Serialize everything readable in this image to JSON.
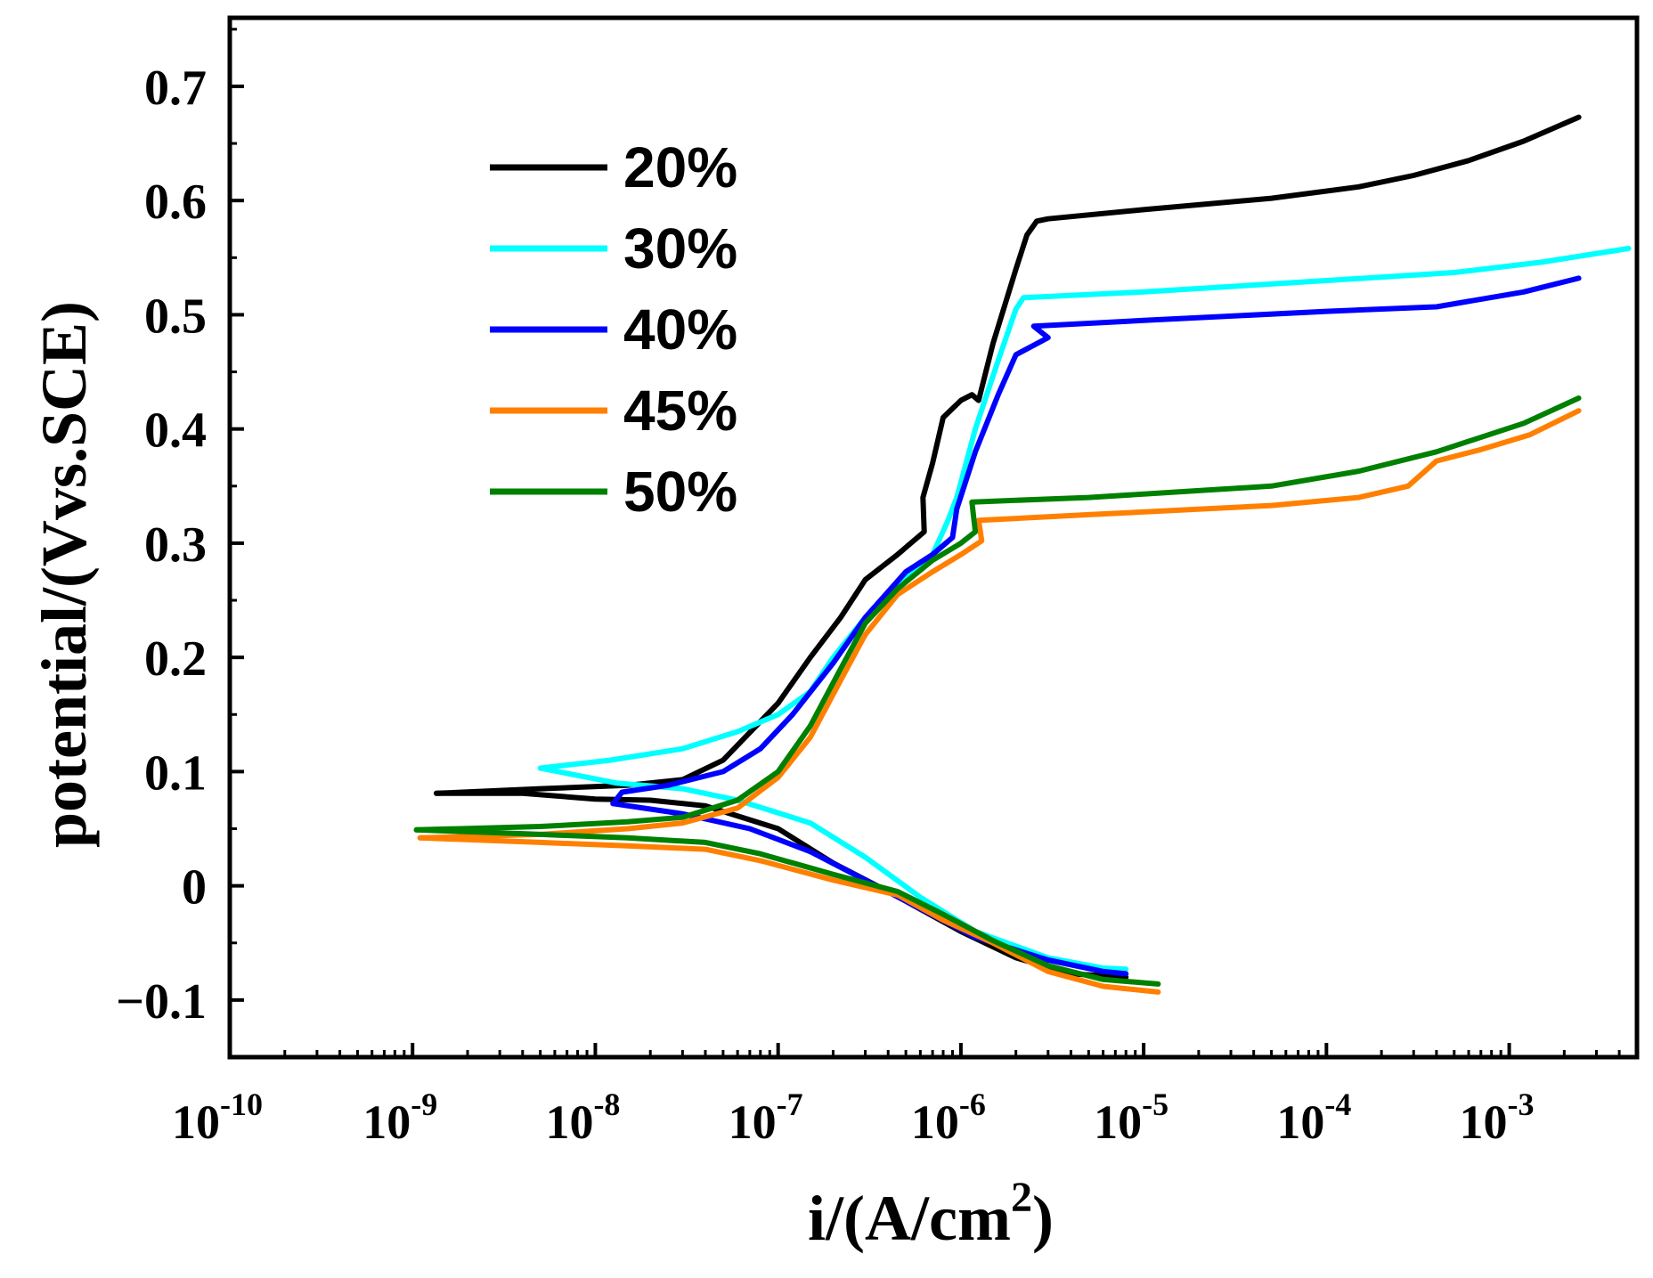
{
  "chart_data": {
    "type": "line",
    "title": "",
    "xlabel": "i/(A/cm",
    "xlabel_sup": "2",
    "xlabel_close": ")",
    "ylabel": "potential/(Vvs.SCE)",
    "x_scale": "log",
    "xlim": [
      1e-10,
      0.005
    ],
    "ylim": [
      -0.15,
      0.76
    ],
    "grid": false,
    "legend_position": "top-left",
    "x_ticks": [
      {
        "value": 1e-10,
        "base": "10",
        "exp": "-10"
      },
      {
        "value": 1e-09,
        "base": "10",
        "exp": "-9"
      },
      {
        "value": 1e-08,
        "base": "10",
        "exp": "-8"
      },
      {
        "value": 1e-07,
        "base": "10",
        "exp": "-7"
      },
      {
        "value": 1e-06,
        "base": "10",
        "exp": "-6"
      },
      {
        "value": 1e-05,
        "base": "10",
        "exp": "-5"
      },
      {
        "value": 0.0001,
        "base": "10",
        "exp": "-4"
      },
      {
        "value": 0.001,
        "base": "10",
        "exp": "-3"
      }
    ],
    "y_ticks": [
      {
        "value": -0.1,
        "label": "−0.1"
      },
      {
        "value": 0,
        "label": "0"
      },
      {
        "value": 0.1,
        "label": "0.1"
      },
      {
        "value": 0.2,
        "label": "0.2"
      },
      {
        "value": 0.3,
        "label": "0.3"
      },
      {
        "value": 0.4,
        "label": "0.4"
      },
      {
        "value": 0.5,
        "label": "0.5"
      },
      {
        "value": 0.6,
        "label": "0.6"
      },
      {
        "value": 0.7,
        "label": "0.7"
      }
    ],
    "series": [
      {
        "name": "20%",
        "color": "#000000",
        "points": [
          [
            1.35e-09,
            0.081
          ],
          [
            4e-09,
            0.081
          ],
          [
            1e-08,
            0.076
          ],
          [
            2e-08,
            0.075
          ],
          [
            4e-08,
            0.07
          ],
          [
            1e-07,
            0.05
          ],
          [
            2e-07,
            0.02
          ],
          [
            4e-07,
            -0.005
          ],
          [
            1e-06,
            -0.04
          ],
          [
            2e-06,
            -0.063
          ],
          [
            4e-06,
            -0.077
          ],
          [
            8e-06,
            -0.08
          ],
          null,
          [
            1.35e-09,
            0.081
          ],
          [
            5e-09,
            0.085
          ],
          [
            1.5e-08,
            0.088
          ],
          [
            3e-08,
            0.093
          ],
          [
            5e-08,
            0.11
          ],
          [
            1e-07,
            0.16
          ],
          [
            1.5e-07,
            0.2
          ],
          [
            2.2e-07,
            0.235
          ],
          [
            3e-07,
            0.268
          ],
          [
            4.5e-07,
            0.29
          ],
          [
            6.3e-07,
            0.31
          ],
          [
            6.2e-07,
            0.34
          ],
          [
            7e-07,
            0.37
          ],
          [
            8e-07,
            0.41
          ],
          [
            1e-06,
            0.425
          ],
          [
            1.15e-06,
            0.43
          ],
          [
            1.25e-06,
            0.425
          ],
          [
            1.5e-06,
            0.475
          ],
          [
            2e-06,
            0.54
          ],
          [
            2.3e-06,
            0.57
          ],
          [
            2.6e-06,
            0.582
          ],
          [
            3e-06,
            0.584
          ],
          [
            1e-05,
            0.592
          ],
          [
            5e-05,
            0.602
          ],
          [
            0.00015,
            0.612
          ],
          [
            0.0003,
            0.622
          ],
          [
            0.0006,
            0.635
          ],
          [
            0.0012,
            0.652
          ],
          [
            0.0024,
            0.673
          ]
        ]
      },
      {
        "name": "30%",
        "color": "#00ffff",
        "points": [
          [
            5e-09,
            0.103
          ],
          [
            1.3e-08,
            0.09
          ],
          [
            3e-08,
            0.085
          ],
          [
            6e-08,
            0.075
          ],
          [
            1.5e-07,
            0.055
          ],
          [
            3e-07,
            0.025
          ],
          [
            6e-07,
            -0.01
          ],
          [
            1.2e-06,
            -0.04
          ],
          [
            3e-06,
            -0.063
          ],
          [
            6e-06,
            -0.072
          ],
          [
            8e-06,
            -0.073
          ],
          null,
          [
            5e-09,
            0.103
          ],
          [
            1.2e-08,
            0.11
          ],
          [
            3e-08,
            0.12
          ],
          [
            6e-08,
            0.135
          ],
          [
            1e-07,
            0.15
          ],
          [
            1.5e-07,
            0.17
          ],
          [
            2e-07,
            0.2
          ],
          [
            3e-07,
            0.235
          ],
          [
            5e-07,
            0.27
          ],
          [
            7e-07,
            0.29
          ],
          [
            8.5e-07,
            0.32
          ],
          [
            9.5e-07,
            0.34
          ],
          [
            1.2e-06,
            0.4
          ],
          [
            1.6e-06,
            0.46
          ],
          [
            2e-06,
            0.505
          ],
          [
            2.2e-06,
            0.515
          ],
          [
            1e-05,
            0.52
          ],
          [
            0.0001,
            0.53
          ],
          [
            0.0005,
            0.537
          ],
          [
            0.0015,
            0.546
          ],
          [
            0.0045,
            0.558
          ]
        ]
      },
      {
        "name": "40%",
        "color": "#0000ff",
        "points": [
          [
            1.25e-08,
            0.072
          ],
          [
            3e-08,
            0.063
          ],
          [
            7e-08,
            0.05
          ],
          [
            1.5e-07,
            0.03
          ],
          [
            3e-07,
            0.005
          ],
          [
            6e-07,
            -0.02
          ],
          [
            1.2e-06,
            -0.045
          ],
          [
            3e-06,
            -0.065
          ],
          [
            6e-06,
            -0.075
          ],
          [
            8e-06,
            -0.077
          ],
          null,
          [
            1.25e-08,
            0.072
          ],
          [
            1.4e-08,
            0.082
          ],
          [
            2.5e-08,
            0.088
          ],
          [
            5e-08,
            0.1
          ],
          [
            8e-08,
            0.12
          ],
          [
            1.2e-07,
            0.15
          ],
          [
            2e-07,
            0.195
          ],
          [
            3e-07,
            0.235
          ],
          [
            5e-07,
            0.275
          ],
          [
            7e-07,
            0.29
          ],
          [
            9e-07,
            0.305
          ],
          [
            9.5e-07,
            0.33
          ],
          [
            1.2e-06,
            0.38
          ],
          [
            1.6e-06,
            0.43
          ],
          [
            2e-06,
            0.465
          ],
          [
            3e-06,
            0.48
          ],
          [
            2.5e-06,
            0.49
          ],
          [
            1e-05,
            0.495
          ],
          [
            0.0001,
            0.503
          ],
          [
            0.0004,
            0.507
          ],
          [
            0.0012,
            0.52
          ],
          [
            0.0024,
            0.532
          ]
        ]
      },
      {
        "name": "45%",
        "color": "#ff8000",
        "points": [
          [
            1.1e-09,
            0.042
          ],
          [
            5e-09,
            0.038
          ],
          [
            1.5e-08,
            0.035
          ],
          [
            4e-08,
            0.032
          ],
          [
            8e-08,
            0.022
          ],
          [
            2e-07,
            0.005
          ],
          [
            4.5e-07,
            -0.008
          ],
          [
            8e-07,
            -0.03
          ],
          [
            1.5e-06,
            -0.05
          ],
          [
            3e-06,
            -0.075
          ],
          [
            6e-06,
            -0.088
          ],
          [
            1.2e-05,
            -0.093
          ],
          null,
          [
            1.1e-09,
            0.042
          ],
          [
            5e-09,
            0.045
          ],
          [
            1.5e-08,
            0.05
          ],
          [
            3e-08,
            0.055
          ],
          [
            6e-08,
            0.068
          ],
          [
            1e-07,
            0.095
          ],
          [
            1.5e-07,
            0.13
          ],
          [
            2.2e-07,
            0.18
          ],
          [
            3e-07,
            0.22
          ],
          [
            4.5e-07,
            0.255
          ],
          [
            7e-07,
            0.275
          ],
          [
            1e-06,
            0.29
          ],
          [
            1.3e-06,
            0.302
          ],
          [
            1.25e-06,
            0.32
          ],
          [
            5e-06,
            0.325
          ],
          [
            5e-05,
            0.333
          ],
          [
            0.00015,
            0.34
          ],
          [
            0.00028,
            0.35
          ],
          [
            0.0004,
            0.372
          ],
          [
            0.0007,
            0.382
          ],
          [
            0.0013,
            0.395
          ],
          [
            0.0024,
            0.416
          ]
        ]
      },
      {
        "name": "50%",
        "color": "#008000",
        "points": [
          [
            1.05e-09,
            0.049
          ],
          [
            5e-09,
            0.045
          ],
          [
            1.5e-08,
            0.042
          ],
          [
            4e-08,
            0.038
          ],
          [
            8e-08,
            0.028
          ],
          [
            2e-07,
            0.01
          ],
          [
            4.5e-07,
            -0.005
          ],
          [
            8e-07,
            -0.025
          ],
          [
            1.5e-06,
            -0.048
          ],
          [
            3e-06,
            -0.07
          ],
          [
            6e-06,
            -0.082
          ],
          [
            1.2e-05,
            -0.086
          ],
          null,
          [
            1.05e-09,
            0.049
          ],
          [
            5e-09,
            0.052
          ],
          [
            1.5e-08,
            0.056
          ],
          [
            3e-08,
            0.06
          ],
          [
            6e-08,
            0.075
          ],
          [
            1e-07,
            0.1
          ],
          [
            1.5e-07,
            0.14
          ],
          [
            2.2e-07,
            0.19
          ],
          [
            3e-07,
            0.23
          ],
          [
            4.5e-07,
            0.26
          ],
          [
            7e-07,
            0.285
          ],
          [
            1e-06,
            0.3
          ],
          [
            1.2e-06,
            0.31
          ],
          [
            1.15e-06,
            0.336
          ],
          [
            5e-06,
            0.34
          ],
          [
            5e-05,
            0.35
          ],
          [
            0.00015,
            0.363
          ],
          [
            0.0004,
            0.38
          ],
          [
            0.0012,
            0.405
          ],
          [
            0.0024,
            0.427
          ]
        ]
      }
    ]
  }
}
